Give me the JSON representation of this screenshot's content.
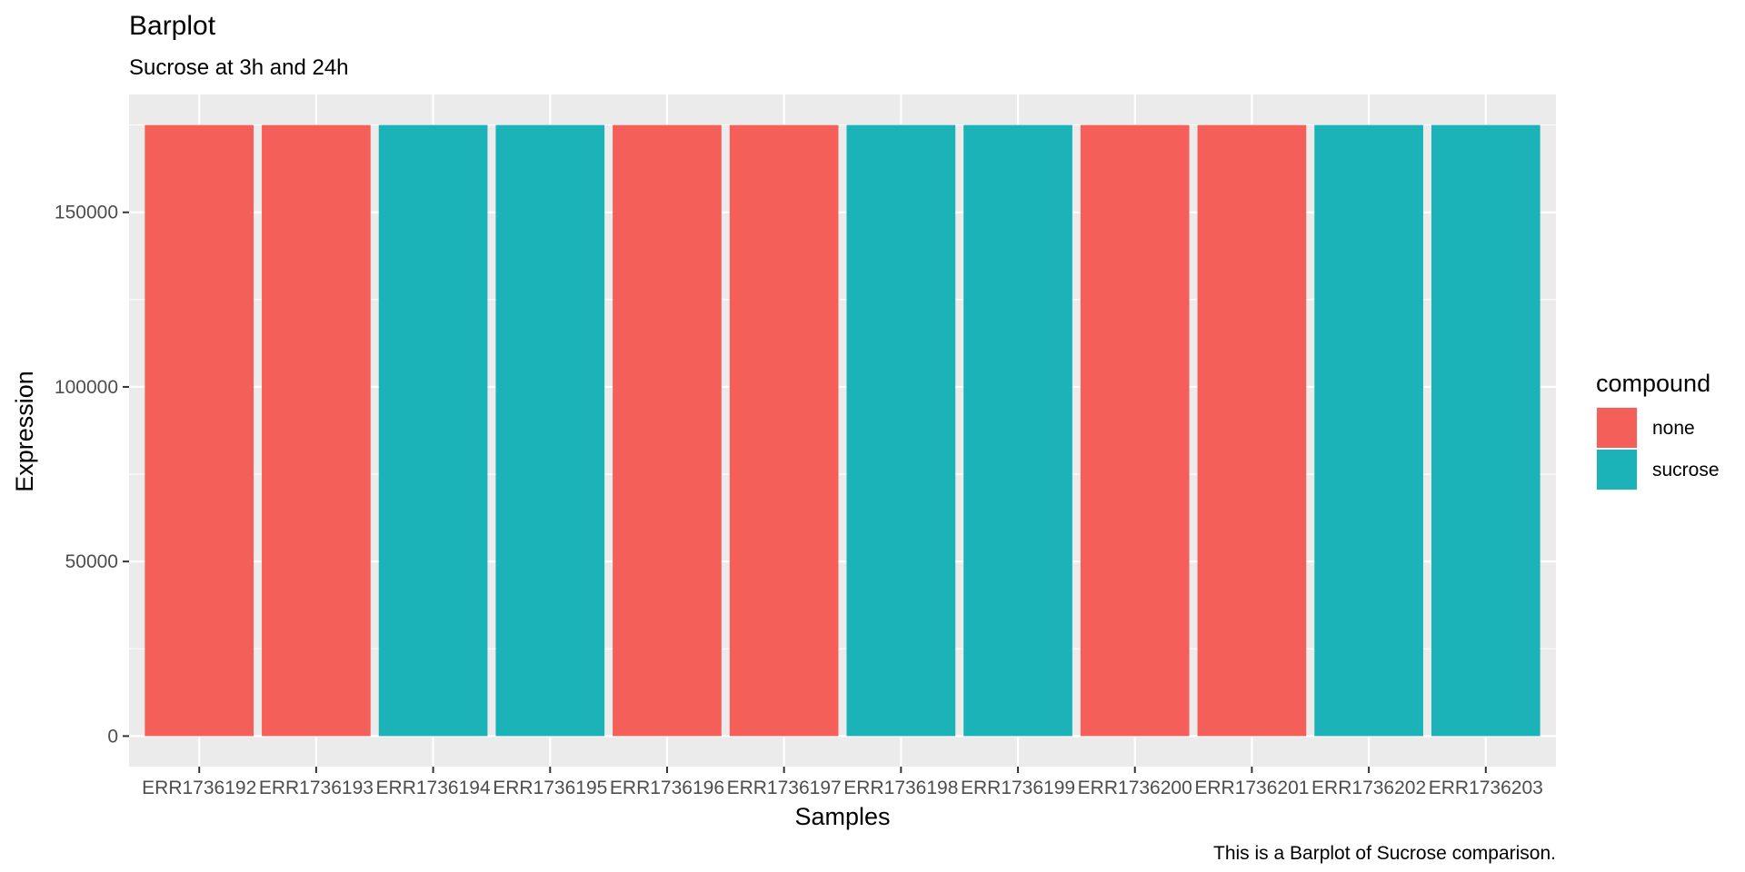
{
  "chart_data": {
    "type": "bar",
    "title": "Barplot",
    "subtitle": "Sucrose at 3h and 24h",
    "caption": "This is a Barplot of Sucrose comparison.",
    "xlabel": "Samples",
    "ylabel": "Expression",
    "categories": [
      "ERR1736192",
      "ERR1736193",
      "ERR1736194",
      "ERR1736195",
      "ERR1736196",
      "ERR1736197",
      "ERR1736198",
      "ERR1736199",
      "ERR1736200",
      "ERR1736201",
      "ERR1736202",
      "ERR1736203"
    ],
    "values": [
      175000,
      175000,
      175000,
      175000,
      175000,
      175000,
      175000,
      175000,
      175000,
      175000,
      175000,
      175000
    ],
    "groups": [
      "none",
      "none",
      "sucrose",
      "sucrose",
      "none",
      "none",
      "sucrose",
      "sucrose",
      "none",
      "none",
      "sucrose",
      "sucrose"
    ],
    "ylim": [
      -8750,
      183750
    ],
    "yticks": [
      0,
      50000,
      100000,
      150000
    ],
    "ytick_labels": [
      "0",
      "50000",
      "100000",
      "150000"
    ],
    "grid": true,
    "legend": {
      "title": "compound",
      "position": "right",
      "entries": [
        {
          "name": "none",
          "color": "#F45F5A"
        },
        {
          "name": "sucrose",
          "color": "#1BB3B7"
        }
      ]
    },
    "colors": {
      "panel_background": "#EBEBEB",
      "gridline": "#FFFFFF",
      "tick": "#333333"
    }
  }
}
